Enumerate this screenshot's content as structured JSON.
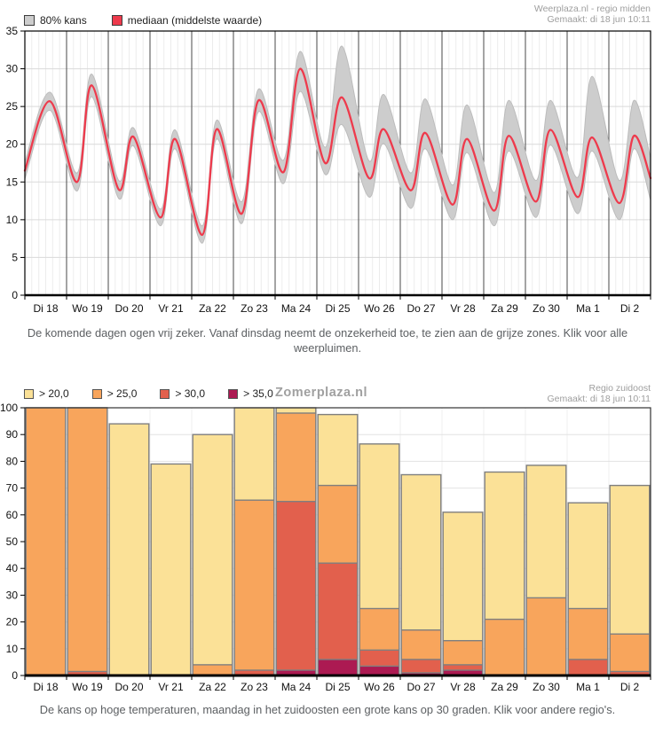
{
  "chart1": {
    "source_line1": "Weerplaza.nl - regio midden",
    "source_line2": "Gemaakt: di 18 jun 10:11",
    "caption": "De komende dagen ogen vrij zeker. Vanaf dinsdag neemt de onzekerheid toe, te zien aan de grijze zones. Klik voor alle weerpluimen."
  },
  "chart2": {
    "watermark": "Zomerplaza.nl",
    "source_line1": "Regio zuidoost",
    "source_line2": "Gemaakt: di 18 jun 10:11",
    "caption": "De kans op hoge temperaturen, maandag in het zuidoosten een grote kans op 30 graden. Klik voor andere regio's."
  },
  "chart_data": [
    {
      "type": "line",
      "description": "temperature plume, median with 80% uncertainty band",
      "categories": [
        "Di 18",
        "Wo 19",
        "Do 20",
        "Vr 21",
        "Za 22",
        "Zo 23",
        "Ma 24",
        "Di 25",
        "Wo 26",
        "Do 27",
        "Vr 28",
        "Za 29",
        "Zo 30",
        "Ma 1",
        "Di 2"
      ],
      "ylim": [
        0,
        35
      ],
      "yticks": [
        0,
        5,
        10,
        15,
        20,
        25,
        30,
        35
      ],
      "x_days": [
        0,
        0.6,
        1.25,
        1.6,
        2.25,
        2.6,
        3.25,
        3.6,
        4.25,
        4.6,
        5.2,
        5.6,
        6.2,
        6.6,
        7.2,
        7.6,
        8.25,
        8.6,
        9.25,
        9.6,
        10.25,
        10.6,
        11.25,
        11.6,
        12.25,
        12.6,
        13.25,
        13.6,
        14.25,
        14.6,
        15
      ],
      "legend_position": "top-left",
      "series": [
        {
          "name": "80% kans",
          "type": "band",
          "color": "#CDCDCD",
          "edge_color": "#BCBCBC",
          "upper": [
            17.6,
            26.9,
            16.2,
            29.3,
            15.2,
            22.2,
            11.4,
            21.9,
            9.2,
            23.2,
            12.4,
            27.3,
            17.9,
            32.3,
            19.6,
            33.0,
            17.8,
            26.6,
            16.2,
            26.0,
            14.6,
            25.2,
            13.6,
            25.8,
            15.2,
            25.8,
            15.6,
            29.0,
            15.2,
            25.8,
            18.2
          ],
          "lower": [
            15.4,
            24.5,
            13.8,
            26.3,
            12.8,
            19.8,
            9.2,
            19.4,
            6.9,
            20.7,
            9.5,
            24.3,
            14.8,
            27.0,
            16.0,
            22.6,
            13.0,
            20.1,
            11.5,
            19.4,
            10.0,
            18.9,
            9.2,
            19.1,
            10.3,
            19.9,
            10.8,
            19.1,
            10.0,
            19.4,
            12.6
          ]
        },
        {
          "name": "mediaan (middelste waarde)",
          "type": "line",
          "color": "#EE3A4C",
          "values": [
            16.5,
            25.7,
            15.0,
            27.8,
            14.0,
            21.0,
            10.3,
            20.7,
            8.0,
            22.0,
            10.8,
            25.8,
            16.3,
            30.0,
            17.5,
            26.2,
            15.5,
            22.0,
            13.9,
            21.5,
            12.0,
            20.7,
            11.2,
            21.1,
            12.4,
            21.9,
            13.0,
            20.9,
            12.2,
            21.1,
            15.5
          ]
        }
      ]
    },
    {
      "type": "bar",
      "description": "chance (%) of exceeding temperature thresholds, overlay-stacked bars",
      "categories": [
        "Di 18",
        "Wo 19",
        "Do 20",
        "Vr 21",
        "Za 22",
        "Zo 23",
        "Ma 24",
        "Di 25",
        "Wo 26",
        "Do 27",
        "Vr 28",
        "Za 29",
        "Zo 30",
        "Ma 1",
        "Di 2"
      ],
      "ylim": [
        0,
        100
      ],
      "yticks": [
        0,
        10,
        20,
        30,
        40,
        50,
        60,
        70,
        80,
        90,
        100
      ],
      "legend_position": "top-left",
      "series": [
        {
          "name": "> 20,0",
          "color": "#FBE197",
          "values": [
            100,
            100,
            94,
            79,
            90,
            100,
            100,
            97.5,
            86.5,
            75,
            61,
            76,
            78.5,
            64.5,
            71
          ]
        },
        {
          "name": "> 25,0",
          "color": "#F8A55C",
          "values": [
            100,
            100,
            0,
            0,
            4,
            65.5,
            98,
            71,
            25,
            17,
            13,
            21,
            29,
            25,
            15.5
          ]
        },
        {
          "name": "> 30,0",
          "color": "#E2604D",
          "values": [
            0,
            1.5,
            0,
            0,
            0,
            2,
            65,
            42,
            9.5,
            6,
            4,
            0,
            0,
            6,
            1.5
          ]
        },
        {
          "name": "> 35,0",
          "color": "#AC1A52",
          "values": [
            0,
            0,
            0,
            0,
            0,
            0,
            2,
            6,
            3.5,
            1,
            2,
            0,
            0,
            0,
            0
          ]
        }
      ]
    }
  ]
}
